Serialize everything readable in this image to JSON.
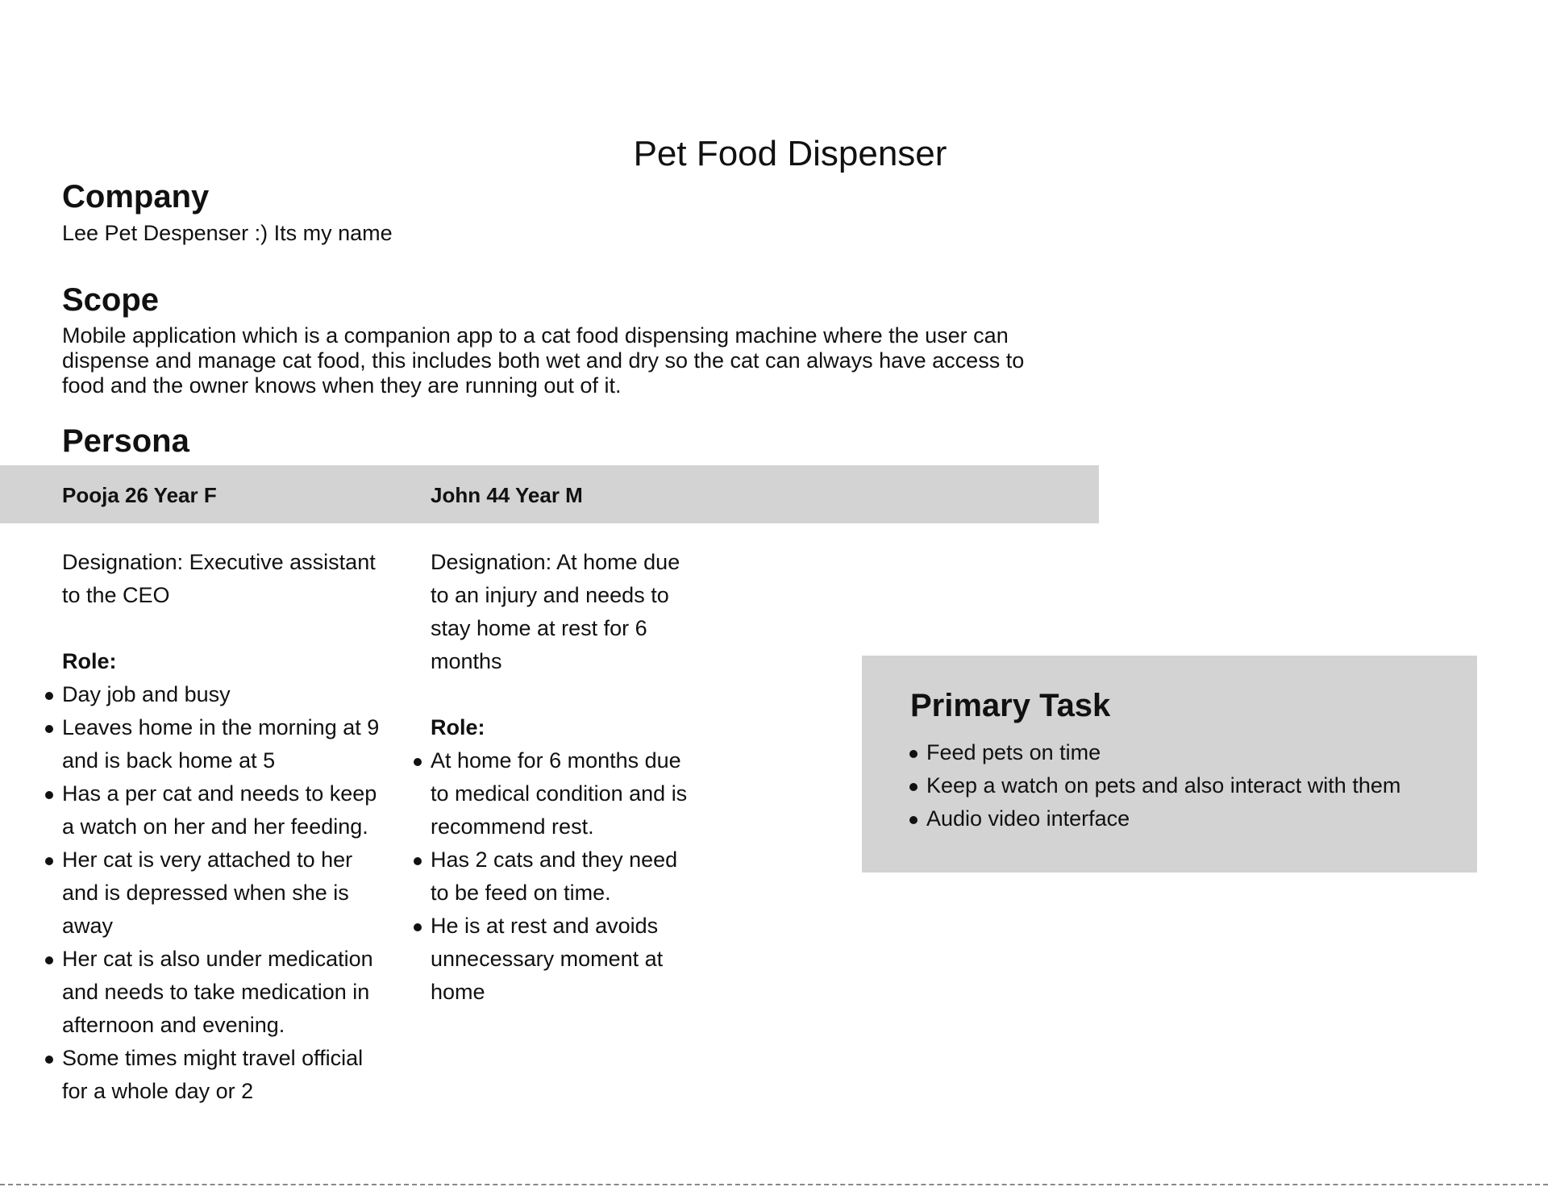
{
  "title": "Pet Food Dispenser",
  "company": {
    "heading": "Company",
    "text": "Lee Pet Despenser :) Its my name"
  },
  "scope": {
    "heading": "Scope",
    "text": "Mobile application which is a companion app to a cat food dispensing machine where the user can dispense and manage cat food, this includes both wet and dry so the cat can always have access to food and the owner knows when they are running out of it."
  },
  "persona": {
    "heading": "Persona",
    "people": [
      {
        "name": "Pooja 26 Year F",
        "designation": "Designation: Executive assistant to the CEO",
        "role_label": "Role:",
        "roles": [
          "Day job and busy",
          "Leaves home in the morning at 9 and is back home at 5",
          "Has a per cat and needs to keep a watch on her and her feeding.",
          "Her cat is very attached to her and is depressed when she is away",
          "Her cat is also under medication and needs to take medication in afternoon and evening.",
          "Some times might travel official for a whole day or 2"
        ]
      },
      {
        "name": "John 44 Year M",
        "designation": "Designation: At home due to an injury and needs to stay home at rest for 6 months",
        "role_label": "Role:",
        "roles": [
          "At home for 6 months due to medical condition and is recommend rest.",
          "Has 2 cats and they need to be feed on time.",
          "He is at rest and avoids unnecessary moment at home"
        ]
      }
    ]
  },
  "primary_task": {
    "heading": "Primary Task",
    "items": [
      "Feed pets on time",
      "Keep a watch on pets and also interact with them",
      "Audio video interface"
    ]
  }
}
